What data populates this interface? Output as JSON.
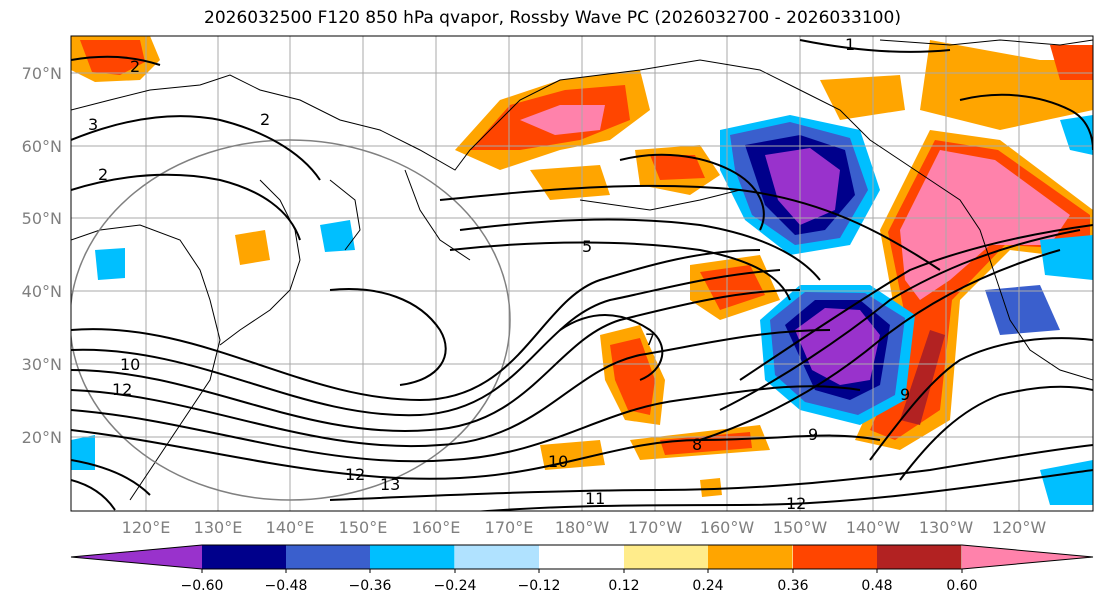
{
  "title": "2026032500 F120 850 hPa qvapor, Rossby Wave PC (2026032700 - 2026033100)",
  "map": {
    "latitude_labels": [
      "70°N",
      "60°N",
      "50°N",
      "40°N",
      "30°N",
      "20°N"
    ],
    "longitude_labels": [
      "120°E",
      "130°E",
      "140°E",
      "150°E",
      "160°E",
      "170°E",
      "180°W",
      "170°W",
      "160°W",
      "150°W",
      "140°W",
      "130°W",
      "120°W"
    ],
    "contour_labels": [
      "1",
      "2",
      "3",
      "2",
      "2",
      "5",
      "7",
      "8",
      "9",
      "10",
      "11",
      "12",
      "12",
      "13",
      "10",
      "12",
      "9"
    ]
  },
  "colorbar": {
    "colors": [
      "#9932cc",
      "#00008b",
      "#3a5fcd",
      "#00bfff",
      "#b0e2ff",
      "#ffffff",
      "#ffec8b",
      "#ffa500",
      "#ff4500",
      "#b22222",
      "#ff82ab"
    ],
    "tick_labels": [
      "−0.60",
      "−0.48",
      "−0.36",
      "−0.24",
      "−0.12",
      "0.12",
      "0.24",
      "0.36",
      "0.48",
      "0.60"
    ]
  },
  "palette": {
    "purple": "#9932cc",
    "navy": "#00008b",
    "blue": "#3a5fcd",
    "cyan": "#00bfff",
    "lightblue": "#b0e2ff",
    "yellow": "#ffec8b",
    "orange": "#ffa500",
    "redorange": "#ff4500",
    "firebrick": "#b22222",
    "pink": "#ff82ab"
  }
}
